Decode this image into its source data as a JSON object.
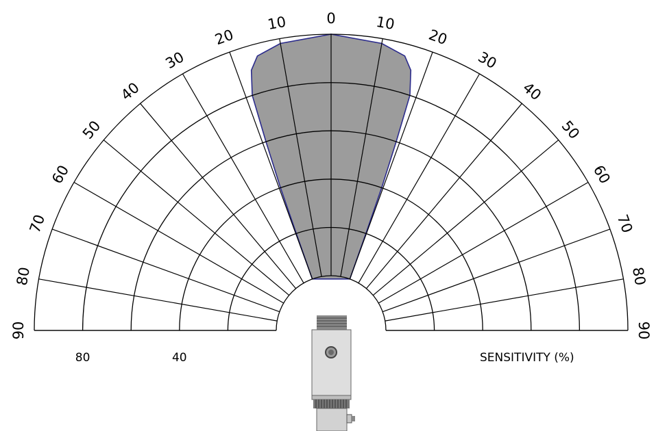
{
  "chart_data": {
    "type": "polar",
    "angle_ticks": [
      "90",
      "80",
      "70",
      "60",
      "50",
      "40",
      "30",
      "20",
      "10",
      "0",
      "10",
      "20",
      "30",
      "40",
      "50",
      "60",
      "70",
      "80",
      "90"
    ],
    "angle_values": [
      -90,
      -80,
      -70,
      -60,
      -50,
      -40,
      -30,
      -20,
      -10,
      0,
      10,
      20,
      30,
      40,
      50,
      60,
      70,
      80,
      90
    ],
    "radial_tick_labels": [
      "80",
      "40"
    ],
    "radial_tick_values": [
      80,
      40
    ],
    "radial_axis_label": "SENSITIVITY (%)",
    "rlim": [
      0,
      100
    ],
    "gridlines": true,
    "series": [
      {
        "fill": "#9c9c9c",
        "stroke": "#2b2b8c",
        "points": [
          {
            "angle": -20.0,
            "r": 0
          },
          {
            "angle": -19.7,
            "r": 20
          },
          {
            "angle": -19.5,
            "r": 40
          },
          {
            "angle": -19.0,
            "r": 60
          },
          {
            "angle": -18.5,
            "r": 80
          },
          {
            "angle": -17.0,
            "r": 90
          },
          {
            "angle": -15.0,
            "r": 95
          },
          {
            "angle": -10.0,
            "r": 98
          },
          {
            "angle": 0.0,
            "r": 100
          },
          {
            "angle": 10.0,
            "r": 98
          },
          {
            "angle": 15.0,
            "r": 95
          },
          {
            "angle": 17.0,
            "r": 90
          },
          {
            "angle": 18.5,
            "r": 80
          },
          {
            "angle": 19.0,
            "r": 60
          },
          {
            "angle": 19.5,
            "r": 40
          },
          {
            "angle": 19.7,
            "r": 20
          },
          {
            "angle": 20.0,
            "r": 0
          }
        ]
      }
    ]
  },
  "colors": {
    "grid": "#000000",
    "lobe_fill": "#9c9c9c",
    "lobe_stroke": "#2b2b8c",
    "sensor_body": "#dcdcdc",
    "sensor_dark": "#6e6e6e"
  },
  "icon": "ultrasonic-sensor-icon"
}
